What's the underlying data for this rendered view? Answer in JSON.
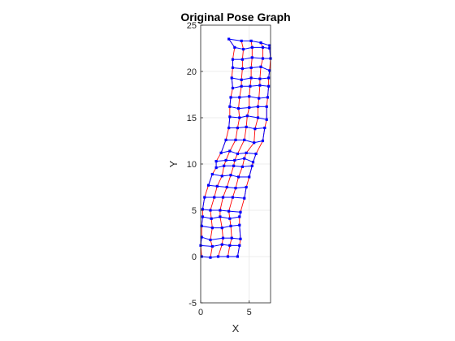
{
  "chart_data": {
    "type": "scatter",
    "title": "Original Pose Graph",
    "xlabel": "X",
    "ylabel": "Y",
    "xlim": [
      0,
      7.2
    ],
    "ylim": [
      -5,
      25
    ],
    "xticks": [
      0,
      5
    ],
    "yticks": [
      -5,
      0,
      5,
      10,
      15,
      20,
      25
    ],
    "grid": true,
    "equal_aspect": true,
    "colors": {
      "nodes": "#0000ff",
      "edges": "#0000ff",
      "loop_closures": "#ff0000",
      "grid": "#e6e6e6",
      "axes": "#262626"
    },
    "rows": [
      [
        [
          0.1,
          0.0
        ],
        [
          1.0,
          -0.1
        ],
        [
          1.8,
          0.0
        ],
        [
          2.8,
          0.0
        ],
        [
          3.8,
          0.0
        ]
      ],
      [
        [
          0.0,
          1.2
        ],
        [
          1.2,
          1.1
        ],
        [
          2.2,
          1.3
        ],
        [
          3.0,
          1.2
        ],
        [
          4.0,
          1.2
        ]
      ],
      [
        [
          0.1,
          2.1
        ],
        [
          1.0,
          1.8
        ],
        [
          2.3,
          2.0
        ],
        [
          3.2,
          2.0
        ],
        [
          4.1,
          1.9
        ]
      ],
      [
        [
          0.1,
          3.3
        ],
        [
          1.2,
          3.1
        ],
        [
          2.2,
          3.1
        ],
        [
          3.1,
          3.3
        ],
        [
          4.0,
          3.4
        ]
      ],
      [
        [
          0.2,
          4.3
        ],
        [
          1.1,
          4.1
        ],
        [
          2.0,
          4.3
        ],
        [
          3.0,
          4.1
        ],
        [
          4.0,
          4.3
        ]
      ],
      [
        [
          0.2,
          5.1
        ],
        [
          1.0,
          5.0
        ],
        [
          2.0,
          5.0
        ],
        [
          2.9,
          4.9
        ],
        [
          4.1,
          4.8
        ]
      ],
      [
        [
          0.4,
          6.4
        ],
        [
          1.4,
          6.4
        ],
        [
          2.3,
          6.4
        ],
        [
          3.3,
          6.4
        ],
        [
          4.5,
          6.3
        ]
      ],
      [
        [
          0.8,
          7.7
        ],
        [
          1.7,
          7.6
        ],
        [
          2.7,
          7.5
        ],
        [
          3.6,
          7.4
        ],
        [
          4.7,
          7.5
        ]
      ],
      [
        [
          1.2,
          8.9
        ],
        [
          2.2,
          8.7
        ],
        [
          3.1,
          8.8
        ],
        [
          3.9,
          8.6
        ],
        [
          5.0,
          8.6
        ]
      ],
      [
        [
          1.6,
          9.6
        ],
        [
          2.4,
          9.8
        ],
        [
          3.4,
          9.8
        ],
        [
          4.3,
          9.7
        ],
        [
          5.3,
          9.8
        ]
      ],
      [
        [
          1.6,
          10.3
        ],
        [
          2.6,
          10.4
        ],
        [
          3.5,
          10.4
        ],
        [
          4.5,
          10.6
        ],
        [
          5.4,
          10.2
        ]
      ],
      [
        [
          2.1,
          11.2
        ],
        [
          3.0,
          11.4
        ],
        [
          3.8,
          11.1
        ],
        [
          4.7,
          11.2
        ],
        [
          5.7,
          11.1
        ]
      ],
      [
        [
          2.6,
          12.6
        ],
        [
          3.6,
          12.6
        ],
        [
          4.5,
          12.6
        ],
        [
          5.5,
          12.3
        ],
        [
          6.4,
          12.5
        ]
      ],
      [
        [
          2.9,
          13.9
        ],
        [
          3.8,
          13.9
        ],
        [
          4.7,
          14.0
        ],
        [
          5.6,
          13.8
        ],
        [
          6.6,
          13.9
        ]
      ],
      [
        [
          3.0,
          15.1
        ],
        [
          4.0,
          15.0
        ],
        [
          4.8,
          15.2
        ],
        [
          5.9,
          15.0
        ],
        [
          6.8,
          14.8
        ]
      ],
      [
        [
          3.0,
          16.2
        ],
        [
          3.9,
          16.0
        ],
        [
          5.0,
          16.1
        ],
        [
          5.9,
          16.2
        ],
        [
          6.8,
          16.2
        ]
      ],
      [
        [
          3.1,
          17.2
        ],
        [
          4.0,
          17.2
        ],
        [
          5.0,
          17.3
        ],
        [
          6.0,
          17.1
        ],
        [
          6.9,
          17.2
        ]
      ],
      [
        [
          3.3,
          18.2
        ],
        [
          4.2,
          18.4
        ],
        [
          5.1,
          18.4
        ],
        [
          6.1,
          18.5
        ],
        [
          7.0,
          18.4
        ]
      ],
      [
        [
          3.2,
          19.3
        ],
        [
          4.2,
          19.1
        ],
        [
          5.2,
          19.3
        ],
        [
          6.1,
          19.2
        ],
        [
          7.0,
          19.3
        ]
      ],
      [
        [
          3.3,
          20.4
        ],
        [
          4.3,
          20.3
        ],
        [
          5.2,
          20.4
        ],
        [
          6.2,
          20.5
        ],
        [
          7.1,
          20.1
        ]
      ],
      [
        [
          3.3,
          21.3
        ],
        [
          4.3,
          21.3
        ],
        [
          5.3,
          21.5
        ],
        [
          6.4,
          21.4
        ],
        [
          7.2,
          21.4
        ]
      ],
      [
        [
          3.5,
          22.6
        ],
        [
          4.4,
          22.4
        ],
        [
          5.3,
          22.6
        ],
        [
          6.4,
          22.6
        ],
        [
          7.1,
          22.5
        ]
      ],
      [
        [
          2.9,
          23.5
        ],
        [
          4.2,
          23.3
        ],
        [
          5.2,
          23.3
        ],
        [
          6.2,
          23.1
        ],
        [
          7.1,
          22.8
        ]
      ]
    ]
  }
}
